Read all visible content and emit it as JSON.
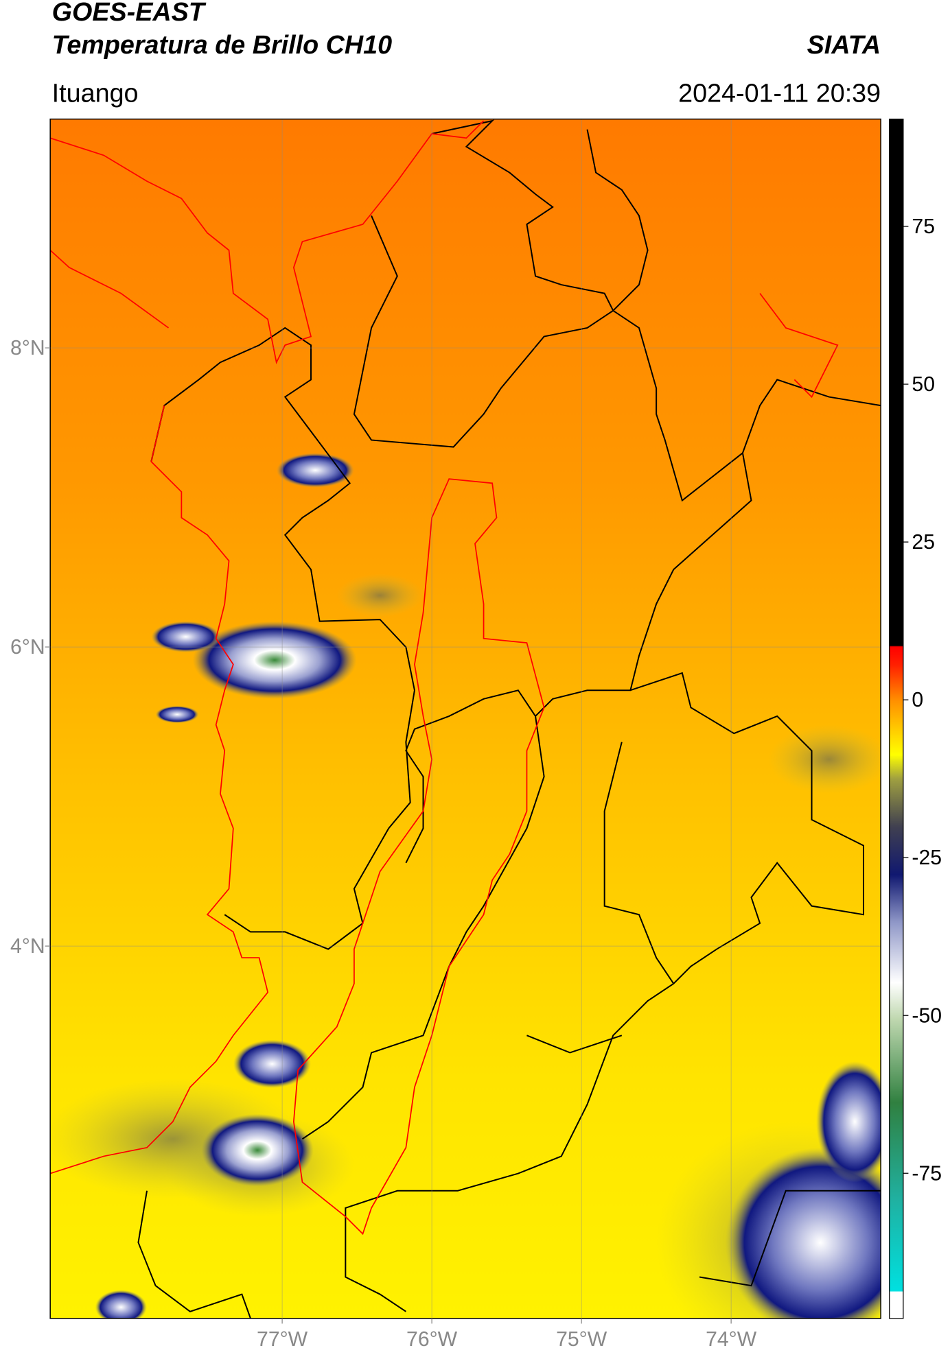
{
  "chart_data": {
    "type": "map",
    "title": "GOES-EAST",
    "subtitle": "Temperatura de Brillo CH10",
    "source": "SIATA",
    "location": "Ituango",
    "datetime": "2024-01-11 20:39",
    "xlim": [
      -78.55,
      -73.0
    ],
    "ylim": [
      1.51,
      9.53
    ],
    "xticks": [
      {
        "value": -77,
        "label": "77°W"
      },
      {
        "value": -76,
        "label": "76°W"
      },
      {
        "value": -75,
        "label": "75°W"
      },
      {
        "value": -74,
        "label": "74°W"
      }
    ],
    "yticks": [
      {
        "value": 4,
        "label": "4°N"
      },
      {
        "value": 6,
        "label": "6°N"
      },
      {
        "value": 8,
        "label": "8°N"
      }
    ],
    "grid": true,
    "colorbar": {
      "lim": [
        -98,
        92
      ],
      "ticks": [
        -75,
        -50,
        -25,
        0,
        25,
        50,
        75
      ]
    }
  }
}
